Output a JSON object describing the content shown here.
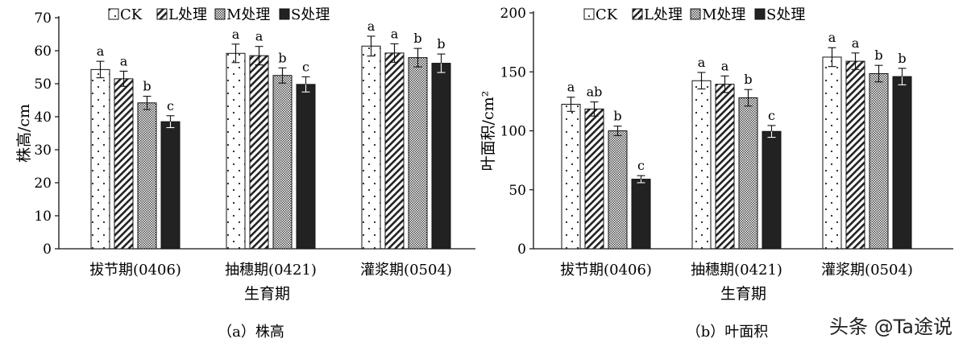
{
  "legend_labels": [
    "CK",
    "L处理",
    "M处理",
    "S处理"
  ],
  "watermark": "头条 @Ta途说",
  "series_colors": {
    "CK": "#ffffff",
    "L": "#ffffff",
    "M": "#d9d9d9",
    "S": "#222222"
  },
  "chart_data": [
    {
      "type": "bar",
      "caption": "（a）株高",
      "xlabel": "生育期",
      "ylabel": "株高/cm",
      "ylim": [
        0,
        70
      ],
      "yticks": [
        "0",
        "10",
        "20",
        "30",
        "40",
        "50",
        "60",
        "70"
      ],
      "categories": [
        "拔节期(0406)",
        "抽穗期(0421)",
        "灌浆期(0504)"
      ],
      "series": [
        {
          "name": "CK",
          "values": [
            54.3,
            59.2,
            61.4
          ],
          "errors": [
            2.5,
            2.8,
            3
          ],
          "letters": [
            "a",
            "a",
            "a"
          ]
        },
        {
          "name": "L处理",
          "values": [
            51.5,
            58.5,
            59.3
          ],
          "errors": [
            2.3,
            2.8,
            2.8
          ],
          "letters": [
            "a",
            "a",
            "a"
          ]
        },
        {
          "name": "M处理",
          "values": [
            44.2,
            52.5,
            57.9
          ],
          "errors": [
            2,
            2.3,
            2.8
          ],
          "letters": [
            "b",
            "b",
            "b"
          ]
        },
        {
          "name": "S处理",
          "values": [
            38.5,
            49.8,
            56.2
          ],
          "errors": [
            1.8,
            2.3,
            2.8
          ],
          "letters": [
            "c",
            "c",
            "b"
          ]
        }
      ]
    },
    {
      "type": "bar",
      "caption": "（b）叶面积",
      "xlabel": "生育期",
      "ylabel": "叶面积/cm²",
      "ylim": [
        0,
        200
      ],
      "yticks": [
        "0",
        "50",
        "100",
        "150",
        "200"
      ],
      "categories": [
        "拔节期(0406)",
        "抽穗期(0421)",
        "灌浆期(0504)"
      ],
      "series": [
        {
          "name": "CK",
          "values": [
            122.5,
            142.5,
            162.5
          ],
          "errors": [
            6,
            7,
            8
          ],
          "letters": [
            "a",
            "a",
            "a"
          ]
        },
        {
          "name": "L处理",
          "values": [
            118.5,
            139.5,
            159
          ],
          "errors": [
            6,
            7,
            7
          ],
          "letters": [
            "ab",
            "a",
            "a"
          ]
        },
        {
          "name": "M处理",
          "values": [
            100,
            128,
            148.5
          ],
          "errors": [
            4,
            7,
            7
          ],
          "letters": [
            "b",
            "b",
            "b"
          ]
        },
        {
          "name": "S处理",
          "values": [
            59,
            99.5,
            146
          ],
          "errors": [
            3,
            5,
            7
          ],
          "letters": [
            "c",
            "c",
            "b"
          ]
        }
      ]
    }
  ]
}
